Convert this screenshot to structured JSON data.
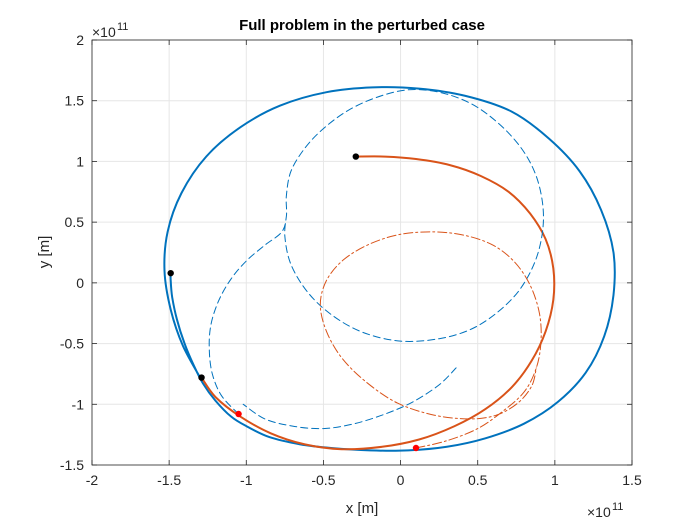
{
  "chart_data": {
    "type": "line",
    "title": "Full problem in the perturbed case",
    "xlabel": "x [m]",
    "ylabel": "y [m]",
    "x_exponent": "×10",
    "x_exponent_power": "11",
    "y_exponent": "×10",
    "y_exponent_power": "11",
    "xlim": [
      -2,
      1.5
    ],
    "ylim": [
      -1.5,
      2
    ],
    "xticks": [
      -2,
      -1.5,
      -1,
      -0.5,
      0,
      0.5,
      1,
      1.5
    ],
    "xtick_labels": [
      "-2",
      "-1.5",
      "-1",
      "-0.5",
      "0",
      "0.5",
      "1",
      "1.5"
    ],
    "yticks": [
      -1.5,
      -1,
      -0.5,
      0,
      0.5,
      1,
      1.5,
      2
    ],
    "ytick_labels": [
      "-1.5",
      "-1",
      "-0.5",
      "0",
      "0.5",
      "1",
      "1.5",
      "2"
    ],
    "grid": true,
    "units_scale": 100000000000.0,
    "colors": {
      "blue": "#0072BD",
      "orange": "#D95319",
      "point_black": "#000000",
      "point_red": "#FF0000"
    },
    "series": [
      {
        "style": "solid",
        "color": "#0072BD",
        "width": 2,
        "points": [
          [
            -1.49,
            0.08
          ],
          [
            -1.49,
            0.02
          ],
          [
            -1.48,
            -0.12
          ],
          [
            -1.45,
            -0.3
          ],
          [
            -1.4,
            -0.5
          ],
          [
            -1.34,
            -0.68
          ],
          [
            -1.28,
            -0.83
          ],
          [
            -1.2,
            -0.97
          ],
          [
            -1.1,
            -1.1
          ],
          [
            -1.0,
            -1.18
          ],
          [
            -0.85,
            -1.27
          ],
          [
            -0.65,
            -1.33
          ],
          [
            -0.45,
            -1.36
          ],
          [
            -0.2,
            -1.38
          ],
          [
            0.05,
            -1.38
          ],
          [
            0.3,
            -1.35
          ],
          [
            0.55,
            -1.28
          ],
          [
            0.8,
            -1.16
          ],
          [
            1.02,
            -0.98
          ],
          [
            1.2,
            -0.74
          ],
          [
            1.32,
            -0.44
          ],
          [
            1.38,
            -0.1
          ],
          [
            1.38,
            0.25
          ],
          [
            1.3,
            0.6
          ],
          [
            1.16,
            0.92
          ],
          [
            0.96,
            1.19
          ],
          [
            0.72,
            1.41
          ],
          [
            0.42,
            1.54
          ],
          [
            0.12,
            1.6
          ],
          [
            -0.18,
            1.61
          ],
          [
            -0.48,
            1.57
          ],
          [
            -0.78,
            1.46
          ],
          [
            -1.04,
            1.28
          ],
          [
            -1.26,
            1.04
          ],
          [
            -1.42,
            0.74
          ],
          [
            -1.51,
            0.42
          ],
          [
            -1.53,
            0.1
          ],
          [
            -1.49,
            -0.22
          ],
          [
            -1.41,
            -0.52
          ],
          [
            -1.29,
            -0.8
          ]
        ]
      },
      {
        "style": "solid",
        "color": "#D95319",
        "width": 2,
        "points": [
          [
            -0.29,
            1.04
          ],
          [
            -0.1,
            1.04
          ],
          [
            0.1,
            1.02
          ],
          [
            0.32,
            0.97
          ],
          [
            0.52,
            0.88
          ],
          [
            0.7,
            0.75
          ],
          [
            0.84,
            0.57
          ],
          [
            0.94,
            0.36
          ],
          [
            0.99,
            0.12
          ],
          [
            0.99,
            -0.14
          ],
          [
            0.94,
            -0.4
          ],
          [
            0.85,
            -0.64
          ],
          [
            0.72,
            -0.86
          ],
          [
            0.55,
            -1.04
          ],
          [
            0.35,
            -1.18
          ],
          [
            0.12,
            -1.29
          ],
          [
            -0.12,
            -1.35
          ],
          [
            -0.38,
            -1.37
          ],
          [
            -0.62,
            -1.33
          ],
          [
            -0.84,
            -1.24
          ],
          [
            -1.04,
            -1.1
          ],
          [
            -1.2,
            -0.94
          ],
          [
            -1.29,
            -0.78
          ]
        ]
      },
      {
        "style": "dashed",
        "color": "#0072BD",
        "width": 1,
        "points": [
          [
            -1.05,
            -1.08
          ],
          [
            -1.16,
            -0.93
          ],
          [
            -1.22,
            -0.75
          ],
          [
            -1.24,
            -0.55
          ],
          [
            -1.23,
            -0.35
          ],
          [
            -1.18,
            -0.15
          ],
          [
            -1.1,
            0.03
          ],
          [
            -1.0,
            0.18
          ],
          [
            -0.88,
            0.31
          ],
          [
            -0.77,
            0.42
          ],
          [
            -0.74,
            0.55
          ],
          [
            -0.74,
            0.72
          ],
          [
            -0.71,
            0.92
          ],
          [
            -0.62,
            1.11
          ],
          [
            -0.5,
            1.27
          ],
          [
            -0.34,
            1.42
          ],
          [
            -0.15,
            1.53
          ],
          [
            0.05,
            1.59
          ],
          [
            0.25,
            1.57
          ],
          [
            0.45,
            1.48
          ],
          [
            0.62,
            1.33
          ],
          [
            0.77,
            1.13
          ],
          [
            0.87,
            0.91
          ],
          [
            0.92,
            0.66
          ],
          [
            0.92,
            0.42
          ],
          [
            0.87,
            0.17
          ],
          [
            0.77,
            -0.06
          ],
          [
            0.63,
            -0.24
          ],
          [
            0.46,
            -0.38
          ],
          [
            0.25,
            -0.46
          ],
          [
            0.0,
            -0.48
          ],
          [
            -0.24,
            -0.41
          ],
          [
            -0.44,
            -0.27
          ],
          [
            -0.6,
            -0.08
          ],
          [
            -0.71,
            0.15
          ],
          [
            -0.75,
            0.38
          ],
          [
            -0.74,
            0.55
          ]
        ]
      },
      {
        "style": "dashed",
        "color": "#0072BD",
        "width": 1,
        "points": [
          [
            0.36,
            -0.7
          ],
          [
            0.25,
            -0.84
          ],
          [
            0.08,
            -0.98
          ],
          [
            -0.1,
            -1.08
          ],
          [
            -0.3,
            -1.16
          ],
          [
            -0.5,
            -1.2
          ],
          [
            -0.7,
            -1.18
          ],
          [
            -0.88,
            -1.12
          ],
          [
            -1.02,
            -1.0
          ]
        ]
      },
      {
        "style": "dashdot",
        "color": "#D95319",
        "width": 1,
        "points": [
          [
            0.1,
            -1.36
          ],
          [
            0.3,
            -1.3
          ],
          [
            0.5,
            -1.2
          ],
          [
            0.66,
            -1.06
          ],
          [
            0.8,
            -0.9
          ],
          [
            0.88,
            -0.7
          ],
          [
            0.91,
            -0.48
          ],
          [
            0.9,
            -0.25
          ],
          [
            0.84,
            -0.02
          ],
          [
            0.74,
            0.17
          ],
          [
            0.6,
            0.31
          ],
          [
            0.42,
            0.39
          ],
          [
            0.22,
            0.42
          ],
          [
            0.0,
            0.4
          ],
          [
            -0.2,
            0.32
          ],
          [
            -0.37,
            0.19
          ],
          [
            -0.48,
            0.02
          ],
          [
            -0.52,
            -0.18
          ],
          [
            -0.48,
            -0.4
          ],
          [
            -0.38,
            -0.62
          ],
          [
            -0.22,
            -0.82
          ],
          [
            -0.02,
            -0.99
          ],
          [
            0.22,
            -1.09
          ],
          [
            0.45,
            -1.12
          ],
          [
            0.62,
            -1.09
          ],
          [
            0.76,
            -0.99
          ],
          [
            0.85,
            -0.85
          ],
          [
            0.88,
            -0.7
          ]
        ]
      }
    ],
    "markers": [
      {
        "x": -1.49,
        "y": 0.08,
        "color": "#000000"
      },
      {
        "x": -0.29,
        "y": 1.04,
        "color": "#000000"
      },
      {
        "x": -1.29,
        "y": -0.78,
        "color": "#000000"
      },
      {
        "x": -1.05,
        "y": -1.08,
        "color": "#FF0000"
      },
      {
        "x": 0.1,
        "y": -1.36,
        "color": "#FF0000"
      }
    ]
  }
}
